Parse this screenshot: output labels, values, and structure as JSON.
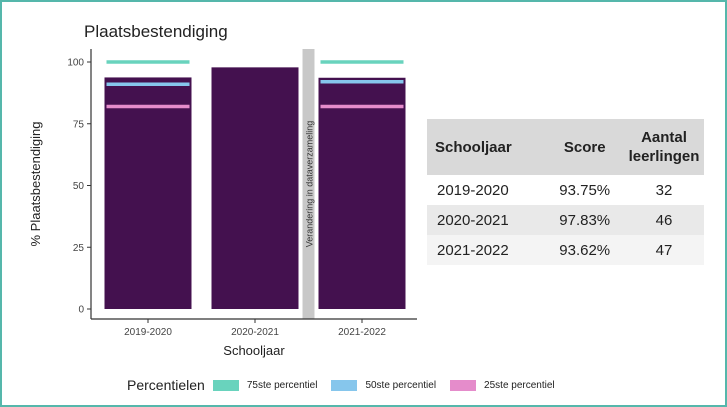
{
  "chart_data": {
    "type": "bar",
    "title": "Plaatsbestendiging",
    "xlabel": "Schooljaar",
    "ylabel": "% Plaatsbestendiging",
    "ylim": [
      0,
      100
    ],
    "yticks": [
      "0",
      "25",
      "50",
      "75",
      "100"
    ],
    "grid": false,
    "legend_position": "bottom",
    "categories": [
      "2019-2020",
      "2020-2021",
      "2021-2022"
    ],
    "series": [
      {
        "name": "Score",
        "values": [
          93.75,
          97.83,
          93.62
        ],
        "color": "#44114f"
      }
    ],
    "percentiles": {
      "title": "Percentielen",
      "entries": [
        {
          "name": "75ste percentiel",
          "color": "#69d3bd",
          "values": [
            100,
            null,
            100
          ]
        },
        {
          "name": "50ste percentiel",
          "color": "#86c6ec",
          "values": [
            91,
            null,
            92
          ]
        },
        {
          "name": "25ste percentiel",
          "color": "#e58ccb",
          "values": [
            82,
            null,
            82
          ]
        }
      ]
    },
    "annotation": {
      "text": "Verandering in dataverzameling",
      "between": [
        "2020-2021",
        "2021-2022"
      ]
    }
  },
  "table": {
    "headers": [
      "Schooljaar",
      "Score",
      "Aantal leerlingen"
    ],
    "rows": [
      [
        "2019-2020",
        "93.75%",
        "32"
      ],
      [
        "2020-2021",
        "97.83%",
        "46"
      ],
      [
        "2021-2022",
        "93.62%",
        "47"
      ]
    ]
  }
}
